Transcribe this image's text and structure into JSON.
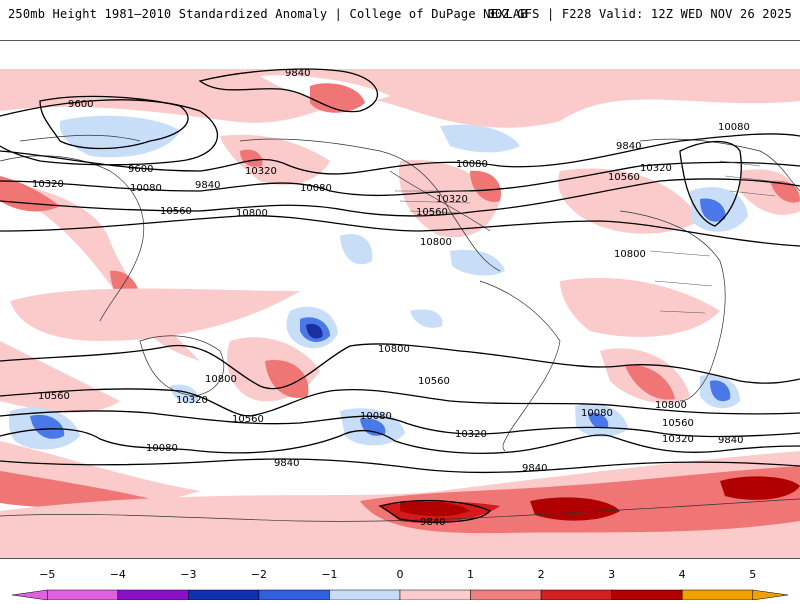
{
  "header": {
    "left_title": "250mb Height 1981–2010 Standardized Anomaly | College of DuPage NEXLAB",
    "right_title": "00Z GFS | F228 Valid: 12Z WED NOV 26 2025"
  },
  "contour_labels": [
    {
      "text": "9840",
      "name": "contour-label-9840-north"
    },
    {
      "text": "9600",
      "name": "contour-label-9600-west"
    },
    {
      "text": "9600",
      "name": "contour-label-9600-pacific"
    },
    {
      "text": "10080",
      "name": "contour-label-10080-asia"
    },
    {
      "text": "9840",
      "name": "contour-label-9840-asia"
    },
    {
      "text": "10320",
      "name": "contour-label-10320-west"
    },
    {
      "text": "10320",
      "name": "contour-label-10320-pacific"
    },
    {
      "text": "10080",
      "name": "contour-label-10080-pacific"
    },
    {
      "text": "10560",
      "name": "contour-label-10560-asia"
    },
    {
      "text": "10800",
      "name": "contour-label-10800-asia"
    },
    {
      "text": "10080",
      "name": "contour-label-10080-na"
    },
    {
      "text": "10320",
      "name": "contour-label-10320-na"
    },
    {
      "text": "10560",
      "name": "contour-label-10560-na"
    },
    {
      "text": "10800",
      "name": "contour-label-10800-na"
    },
    {
      "text": "9840",
      "name": "contour-label-9840-atlantic"
    },
    {
      "text": "10080",
      "name": "contour-label-10080-europe"
    },
    {
      "text": "10320",
      "name": "contour-label-10320-atlantic"
    },
    {
      "text": "10560",
      "name": "contour-label-10560-atlantic"
    },
    {
      "text": "10800",
      "name": "contour-label-10800-africa"
    },
    {
      "text": "10800",
      "name": "contour-label-10800-south-pacific"
    },
    {
      "text": "10800",
      "name": "contour-label-10800-australia"
    },
    {
      "text": "10560",
      "name": "contour-label-10560-south-pacific"
    },
    {
      "text": "10560",
      "name": "contour-label-10560-indian"
    },
    {
      "text": "10320",
      "name": "contour-label-10320-australia"
    },
    {
      "text": "10560",
      "name": "contour-label-10560-tasman"
    },
    {
      "text": "10080",
      "name": "contour-label-10080-south-pacific"
    },
    {
      "text": "10080",
      "name": "contour-label-10080-indian-south"
    },
    {
      "text": "10320",
      "name": "contour-label-10320-south-america"
    },
    {
      "text": "9840",
      "name": "contour-label-9840-south"
    },
    {
      "text": "9840",
      "name": "contour-label-9840-drake"
    },
    {
      "text": "10080",
      "name": "contour-label-10080-south-atlantic"
    },
    {
      "text": "10800",
      "name": "contour-label-10800-south-atlantic"
    },
    {
      "text": "10560",
      "name": "contour-label-10560-south-atlantic"
    },
    {
      "text": "10320",
      "name": "contour-label-10320-south-atlantic"
    },
    {
      "text": "9840",
      "name": "contour-label-9840-south-east"
    },
    {
      "text": "9840",
      "name": "contour-label-9840-antarctic"
    }
  ],
  "colorbar": {
    "ticks": [
      "−5",
      "−4",
      "−3",
      "−2",
      "−1",
      "0",
      "1",
      "2",
      "3",
      "4",
      "5"
    ],
    "colors": [
      "#e060e0",
      "#8a10c8",
      "#1030b0",
      "#3060e0",
      "#c8dcf8",
      "#ffffff",
      "#fccccc",
      "#f08080",
      "#d02020",
      "#b00000",
      "#f0a000"
    ]
  },
  "anomaly_colors": {
    "pos_light": "#fbcaca",
    "pos_mid": "#f07575",
    "pos_strong": "#d41a1a",
    "pos_max": "#b00000",
    "neg_light": "#c8ddf8",
    "neg_mid": "#4a78e8",
    "neg_strong": "#1a2fa0"
  }
}
